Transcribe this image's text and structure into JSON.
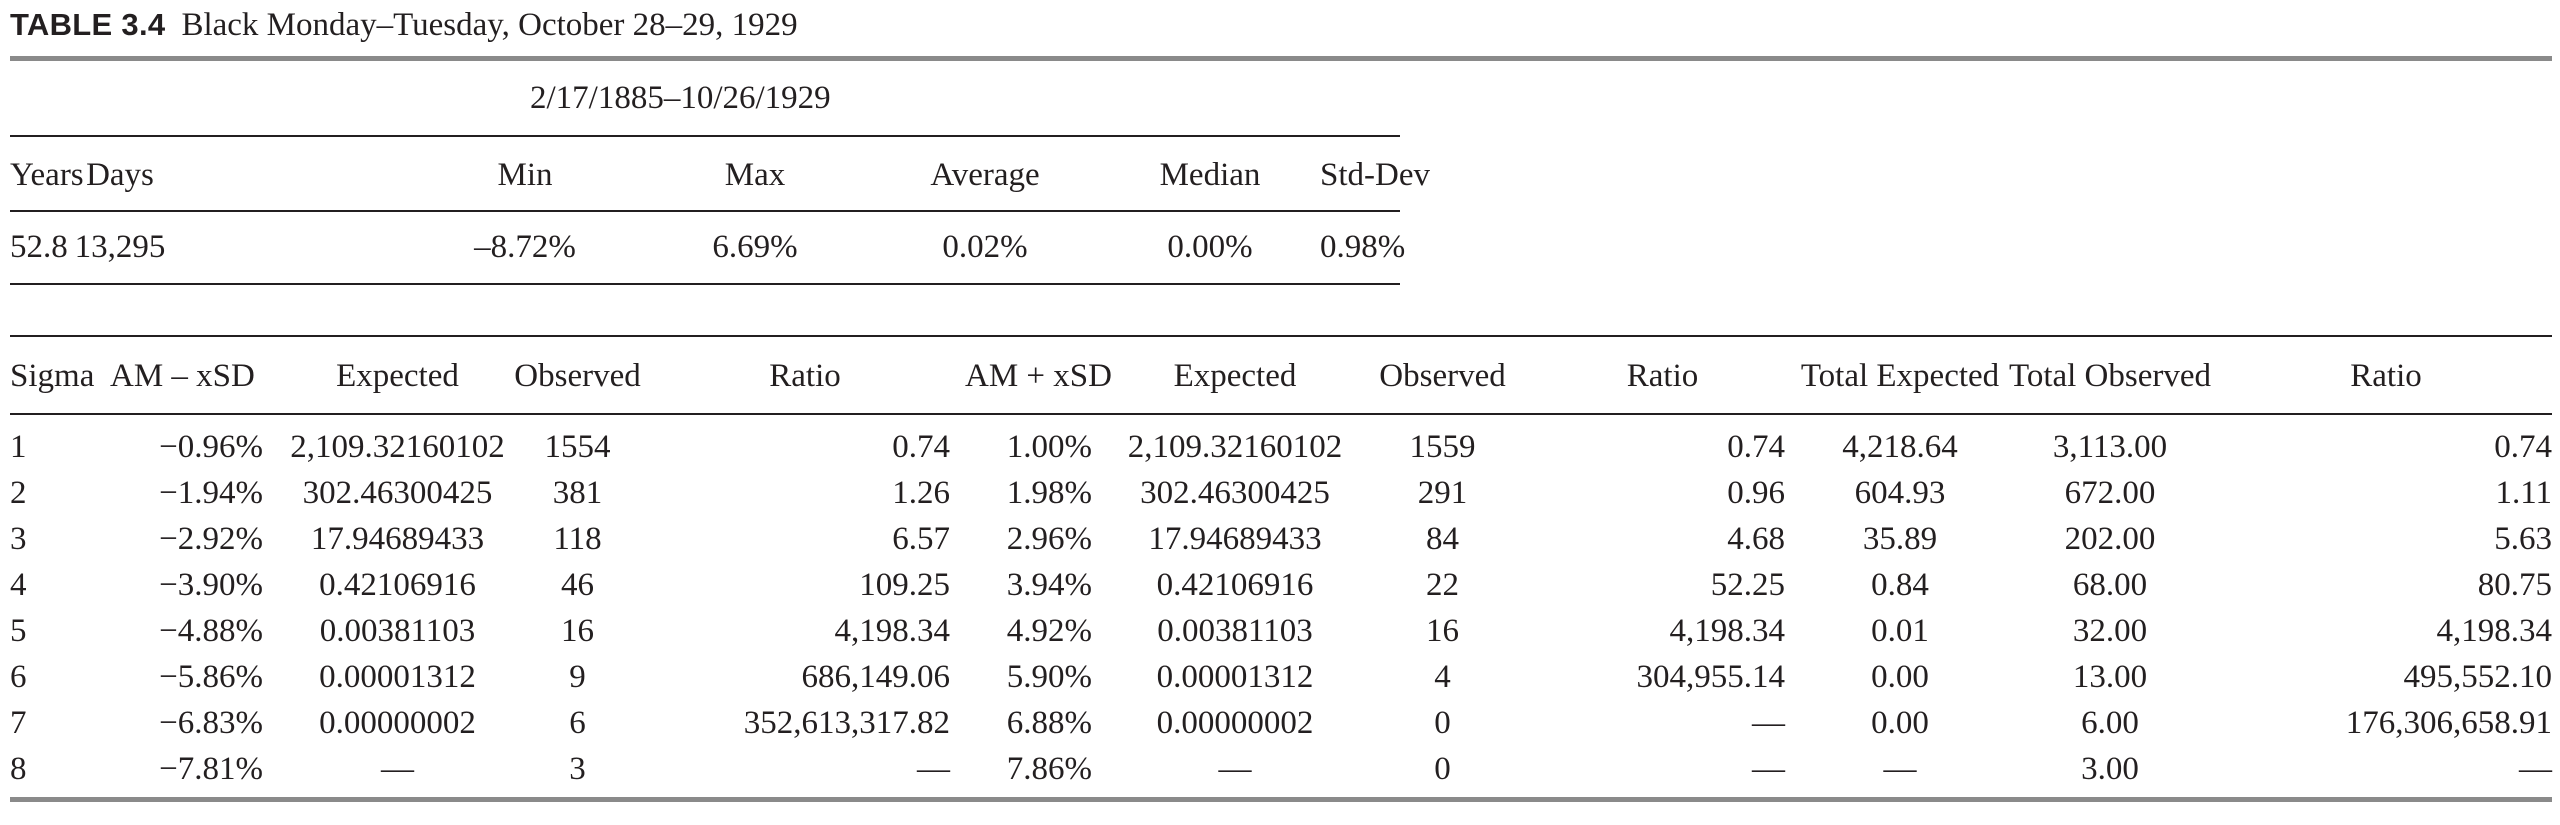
{
  "caption": {
    "label": "TABLE 3.4",
    "title": "Black Monday–Tuesday, October 28–29, 1929"
  },
  "summary": {
    "period": "2/17/1885–10/26/1929",
    "headers": [
      "Years",
      "Days",
      "Min",
      "Max",
      "Average",
      "Median",
      "Std-Dev"
    ],
    "values": [
      "52.8",
      "13,295",
      "–8.72%",
      "6.69%",
      "0.02%",
      "0.00%",
      "0.98%"
    ]
  },
  "sigma_table": {
    "headers": [
      "Sigma",
      "AM – xSD",
      "Expected",
      "Observed",
      "Ratio",
      "AM + xSD",
      "Expected",
      "Observed",
      "Ratio",
      "Total Expected",
      "Total Observed",
      "Ratio"
    ],
    "rows": [
      [
        "1",
        "−0.96%",
        "2,109.32160102",
        "1554",
        "0.74",
        "1.00%",
        "2,109.32160102",
        "1559",
        "0.74",
        "4,218.64",
        "3,113.00",
        "0.74"
      ],
      [
        "2",
        "−1.94%",
        "302.46300425",
        "381",
        "1.26",
        "1.98%",
        "302.46300425",
        "291",
        "0.96",
        "604.93",
        "672.00",
        "1.11"
      ],
      [
        "3",
        "−2.92%",
        "17.94689433",
        "118",
        "6.57",
        "2.96%",
        "17.94689433",
        "84",
        "4.68",
        "35.89",
        "202.00",
        "5.63"
      ],
      [
        "4",
        "−3.90%",
        "0.42106916",
        "46",
        "109.25",
        "3.94%",
        "0.42106916",
        "22",
        "52.25",
        "0.84",
        "68.00",
        "80.75"
      ],
      [
        "5",
        "−4.88%",
        "0.00381103",
        "16",
        "4,198.34",
        "4.92%",
        "0.00381103",
        "16",
        "4,198.34",
        "0.01",
        "32.00",
        "4,198.34"
      ],
      [
        "6",
        "−5.86%",
        "0.00001312",
        "9",
        "686,149.06",
        "5.90%",
        "0.00001312",
        "4",
        "304,955.14",
        "0.00",
        "13.00",
        "495,552.10"
      ],
      [
        "7",
        "−6.83%",
        "0.00000002",
        "6",
        "352,613,317.82",
        "6.88%",
        "0.00000002",
        "0",
        "—",
        "0.00",
        "6.00",
        "176,306,658.91"
      ],
      [
        "8",
        "−7.81%",
        "—",
        "3",
        "—",
        "7.86%",
        "—",
        "0",
        "—",
        "—",
        "3.00",
        "—"
      ]
    ]
  }
}
